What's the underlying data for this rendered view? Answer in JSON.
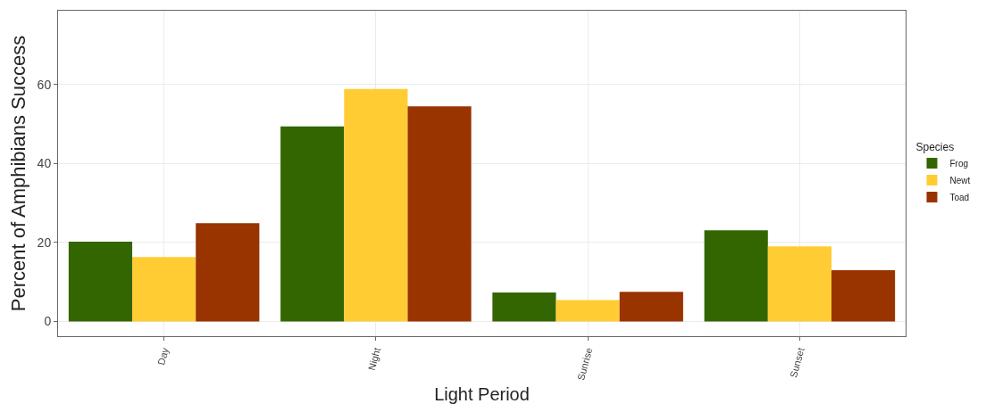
{
  "chart_data": {
    "type": "bar",
    "xlabel": "Light Period",
    "ylabel": "Percent of Amphibians Success",
    "legend_title": "Species",
    "categories": [
      "Day",
      "Night",
      "Sunrise",
      "Sunset"
    ],
    "series": [
      {
        "name": "Frog",
        "color": "#336600",
        "values": [
          20.2,
          49.4,
          7.3,
          23.1
        ]
      },
      {
        "name": "Newt",
        "color": "#ffcc33",
        "values": [
          16.3,
          58.9,
          5.4,
          19.0
        ]
      },
      {
        "name": "Toad",
        "color": "#993300",
        "values": [
          24.9,
          54.5,
          7.5,
          13.0
        ]
      }
    ],
    "ylim": [
      -3.75,
      78.75
    ],
    "yticks": [
      0,
      20,
      40,
      60
    ],
    "grid": true,
    "legend": "right"
  }
}
